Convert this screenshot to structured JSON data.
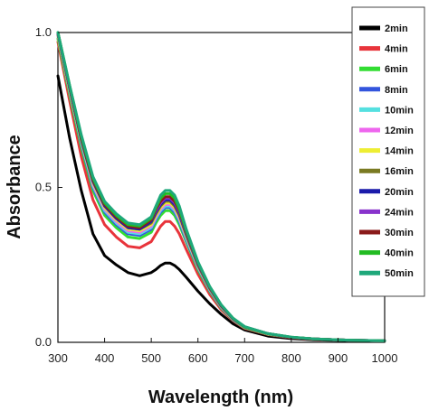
{
  "chart_data": {
    "type": "line",
    "xlabel": "Wavelength (nm)",
    "ylabel": "Absorbance",
    "xlim": [
      300,
      1000
    ],
    "ylim": [
      0.0,
      1.0
    ],
    "x_ticks": [
      300,
      400,
      500,
      600,
      700,
      800,
      900,
      1000
    ],
    "y_ticks": [
      0.0,
      0.5,
      1.0
    ],
    "y_tick_labels": [
      "0.0",
      "0.5",
      "1.0"
    ],
    "grid": false,
    "legend_position": "right",
    "x": [
      300,
      325,
      350,
      375,
      400,
      425,
      450,
      475,
      500,
      510,
      520,
      530,
      540,
      550,
      560,
      575,
      600,
      625,
      650,
      675,
      700,
      750,
      800,
      850,
      900,
      950,
      1000
    ],
    "series": [
      {
        "name": "2min",
        "color": "#000000",
        "values": [
          0.86,
          0.66,
          0.49,
          0.35,
          0.28,
          0.25,
          0.225,
          0.215,
          0.225,
          0.235,
          0.248,
          0.256,
          0.256,
          0.248,
          0.235,
          0.21,
          0.165,
          0.125,
          0.09,
          0.06,
          0.04,
          0.02,
          0.012,
          0.008,
          0.006,
          0.005,
          0.004
        ]
      },
      {
        "name": "4min",
        "color": "#e8343b",
        "values": [
          0.97,
          0.78,
          0.6,
          0.46,
          0.38,
          0.34,
          0.31,
          0.305,
          0.325,
          0.35,
          0.375,
          0.39,
          0.39,
          0.375,
          0.35,
          0.3,
          0.22,
          0.155,
          0.105,
          0.07,
          0.045,
          0.025,
          0.015,
          0.01,
          0.008,
          0.006,
          0.005
        ]
      },
      {
        "name": "6min",
        "color": "#33dd33",
        "values": [
          0.98,
          0.8,
          0.63,
          0.49,
          0.41,
          0.37,
          0.34,
          0.335,
          0.355,
          0.385,
          0.41,
          0.425,
          0.425,
          0.41,
          0.38,
          0.325,
          0.235,
          0.165,
          0.11,
          0.072,
          0.047,
          0.026,
          0.016,
          0.011,
          0.008,
          0.006,
          0.005
        ]
      },
      {
        "name": "8min",
        "color": "#3355dd",
        "values": [
          0.99,
          0.81,
          0.64,
          0.5,
          0.42,
          0.38,
          0.35,
          0.345,
          0.365,
          0.395,
          0.42,
          0.435,
          0.435,
          0.42,
          0.39,
          0.33,
          0.24,
          0.168,
          0.112,
          0.073,
          0.048,
          0.027,
          0.016,
          0.011,
          0.008,
          0.006,
          0.005
        ]
      },
      {
        "name": "10min",
        "color": "#55e0e0",
        "values": [
          0.99,
          0.81,
          0.645,
          0.505,
          0.425,
          0.385,
          0.355,
          0.35,
          0.37,
          0.4,
          0.425,
          0.44,
          0.44,
          0.425,
          0.395,
          0.335,
          0.242,
          0.17,
          0.113,
          0.074,
          0.048,
          0.027,
          0.016,
          0.011,
          0.008,
          0.006,
          0.005
        ]
      },
      {
        "name": "12min",
        "color": "#ee66ee",
        "values": [
          0.99,
          0.815,
          0.65,
          0.51,
          0.43,
          0.39,
          0.36,
          0.355,
          0.375,
          0.405,
          0.43,
          0.445,
          0.445,
          0.43,
          0.4,
          0.34,
          0.245,
          0.172,
          0.114,
          0.075,
          0.049,
          0.027,
          0.016,
          0.011,
          0.008,
          0.006,
          0.005
        ]
      },
      {
        "name": "14min",
        "color": "#eeee33",
        "values": [
          0.99,
          0.815,
          0.65,
          0.515,
          0.435,
          0.395,
          0.365,
          0.36,
          0.38,
          0.41,
          0.435,
          0.45,
          0.45,
          0.435,
          0.405,
          0.343,
          0.247,
          0.173,
          0.115,
          0.075,
          0.049,
          0.027,
          0.016,
          0.011,
          0.008,
          0.006,
          0.005
        ]
      },
      {
        "name": "16min",
        "color": "#7a7a22",
        "values": [
          0.995,
          0.82,
          0.655,
          0.52,
          0.44,
          0.4,
          0.37,
          0.365,
          0.385,
          0.415,
          0.44,
          0.455,
          0.455,
          0.44,
          0.41,
          0.346,
          0.249,
          0.174,
          0.116,
          0.076,
          0.049,
          0.028,
          0.016,
          0.011,
          0.008,
          0.006,
          0.005
        ]
      },
      {
        "name": "20min",
        "color": "#1a1aaa",
        "values": [
          0.995,
          0.82,
          0.655,
          0.52,
          0.44,
          0.4,
          0.37,
          0.365,
          0.39,
          0.42,
          0.445,
          0.46,
          0.46,
          0.445,
          0.415,
          0.35,
          0.252,
          0.176,
          0.117,
          0.076,
          0.05,
          0.028,
          0.016,
          0.011,
          0.008,
          0.006,
          0.005
        ]
      },
      {
        "name": "24min",
        "color": "#8833cc",
        "values": [
          0.995,
          0.82,
          0.66,
          0.525,
          0.445,
          0.405,
          0.375,
          0.37,
          0.395,
          0.425,
          0.45,
          0.465,
          0.465,
          0.45,
          0.42,
          0.353,
          0.254,
          0.177,
          0.118,
          0.077,
          0.05,
          0.028,
          0.016,
          0.011,
          0.008,
          0.006,
          0.005
        ]
      },
      {
        "name": "30min",
        "color": "#8a1a1a",
        "values": [
          1.0,
          0.825,
          0.66,
          0.525,
          0.445,
          0.405,
          0.375,
          0.37,
          0.395,
          0.43,
          0.455,
          0.47,
          0.47,
          0.455,
          0.425,
          0.356,
          0.256,
          0.178,
          0.119,
          0.077,
          0.05,
          0.028,
          0.016,
          0.011,
          0.008,
          0.006,
          0.005
        ]
      },
      {
        "name": "40min",
        "color": "#22bb22",
        "values": [
          1.0,
          0.83,
          0.665,
          0.53,
          0.45,
          0.41,
          0.38,
          0.375,
          0.4,
          0.435,
          0.465,
          0.48,
          0.48,
          0.465,
          0.43,
          0.36,
          0.258,
          0.18,
          0.12,
          0.078,
          0.05,
          0.028,
          0.017,
          0.011,
          0.008,
          0.006,
          0.005
        ]
      },
      {
        "name": "50min",
        "color": "#1ea87a",
        "values": [
          1.0,
          0.83,
          0.67,
          0.535,
          0.455,
          0.415,
          0.385,
          0.38,
          0.405,
          0.44,
          0.475,
          0.49,
          0.49,
          0.475,
          0.44,
          0.365,
          0.26,
          0.181,
          0.121,
          0.078,
          0.051,
          0.028,
          0.017,
          0.011,
          0.008,
          0.006,
          0.005
        ]
      }
    ]
  }
}
